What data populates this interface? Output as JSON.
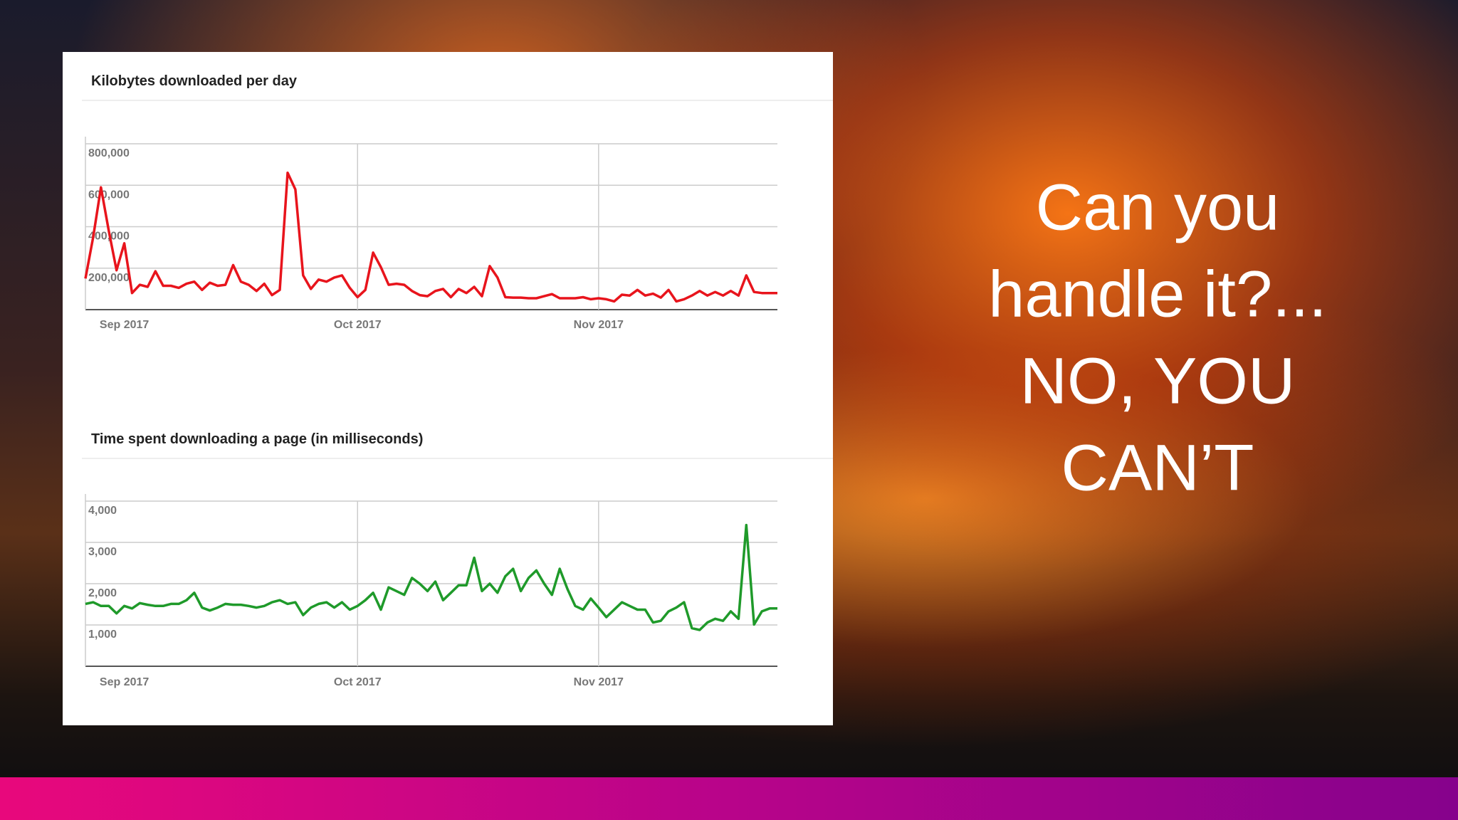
{
  "chart_data": [
    {
      "type": "line",
      "title": "Kilobytes downloaded per day",
      "color": "#e8141c",
      "categories": [
        null,
        null,
        null,
        null,
        null,
        "Sep 2017",
        null,
        null,
        null,
        null,
        null,
        null,
        null,
        null,
        null,
        null,
        null,
        null,
        null,
        null,
        null,
        null,
        null,
        null,
        null,
        null,
        null,
        null,
        null,
        null,
        null,
        null,
        null,
        null,
        null,
        "Oct 2017",
        null,
        null,
        null,
        null,
        null,
        null,
        null,
        null,
        null,
        null,
        null,
        null,
        null,
        null,
        null,
        null,
        null,
        null,
        null,
        null,
        null,
        null,
        null,
        null,
        null,
        null,
        null,
        null,
        null,
        null,
        "Nov 2017",
        null,
        null,
        null,
        null,
        null,
        null,
        null,
        null,
        null,
        null,
        null,
        null,
        null,
        null,
        null,
        null,
        null,
        null,
        null,
        null,
        null,
        null,
        null
      ],
      "values": [
        150000,
        350000,
        590000,
        380000,
        190000,
        320000,
        80000,
        120000,
        110000,
        185000,
        115000,
        115000,
        105000,
        125000,
        135000,
        95000,
        130000,
        115000,
        120000,
        215000,
        135000,
        120000,
        90000,
        125000,
        70000,
        95000,
        660000,
        580000,
        165000,
        100000,
        145000,
        135000,
        155000,
        165000,
        105000,
        60000,
        95000,
        275000,
        205000,
        120000,
        125000,
        120000,
        90000,
        70000,
        65000,
        90000,
        100000,
        60000,
        100000,
        80000,
        110000,
        65000,
        210000,
        155000,
        60000,
        58000,
        58000,
        55000,
        55000,
        65000,
        75000,
        55000,
        55000,
        55000,
        60000,
        50000,
        55000,
        50000,
        40000,
        72000,
        68000,
        95000,
        68000,
        77000,
        58000,
        95000,
        40000,
        50000,
        68000,
        90000,
        68000,
        85000,
        68000,
        90000,
        68000,
        165000,
        85000,
        80000,
        80000,
        80000
      ],
      "ylim": [
        0,
        800000
      ],
      "yticks": [
        {
          "value": 200000,
          "label": "200,000"
        },
        {
          "value": 400000,
          "label": "400,000"
        },
        {
          "value": 600000,
          "label": "600,000"
        },
        {
          "value": 800000,
          "label": "800,000"
        }
      ],
      "grid": true
    },
    {
      "type": "line",
      "title": "Time spent downloading a page (in milliseconds)",
      "color": "#1f9a2a",
      "categories": [
        null,
        null,
        null,
        null,
        null,
        "Sep 2017",
        null,
        null,
        null,
        null,
        null,
        null,
        null,
        null,
        null,
        null,
        null,
        null,
        null,
        null,
        null,
        null,
        null,
        null,
        null,
        null,
        null,
        null,
        null,
        null,
        null,
        null,
        null,
        null,
        null,
        "Oct 2017",
        null,
        null,
        null,
        null,
        null,
        null,
        null,
        null,
        null,
        null,
        null,
        null,
        null,
        null,
        null,
        null,
        null,
        null,
        null,
        null,
        null,
        null,
        null,
        null,
        null,
        null,
        null,
        null,
        null,
        null,
        "Nov 2017",
        null,
        null,
        null,
        null,
        null,
        null,
        null,
        null,
        null,
        null,
        null,
        null,
        null,
        null,
        null,
        null,
        null,
        null,
        null,
        null,
        null,
        null,
        null
      ],
      "values": [
        1510,
        1550,
        1460,
        1460,
        1280,
        1460,
        1400,
        1530,
        1490,
        1460,
        1460,
        1510,
        1510,
        1600,
        1780,
        1420,
        1350,
        1420,
        1510,
        1490,
        1490,
        1460,
        1420,
        1460,
        1550,
        1600,
        1510,
        1550,
        1240,
        1420,
        1510,
        1550,
        1420,
        1550,
        1370,
        1460,
        1600,
        1780,
        1370,
        1910,
        1820,
        1730,
        2140,
        2000,
        1820,
        2050,
        1600,
        1780,
        1960,
        1960,
        2630,
        1820,
        2000,
        1780,
        2180,
        2360,
        1820,
        2140,
        2320,
        2000,
        1730,
        2360,
        1870,
        1460,
        1370,
        1640,
        1420,
        1190,
        1370,
        1550,
        1460,
        1370,
        1370,
        1060,
        1100,
        1330,
        1420,
        1550,
        920,
        880,
        1060,
        1150,
        1100,
        1330,
        1150,
        3420,
        1010,
        1330,
        1400,
        1400
      ],
      "ylim": [
        0,
        4000
      ],
      "yticks": [
        {
          "value": 1000,
          "label": "1,000"
        },
        {
          "value": 2000,
          "label": "2,000"
        },
        {
          "value": 3000,
          "label": "3,000"
        },
        {
          "value": 4000,
          "label": "4,000"
        }
      ],
      "grid": true
    }
  ],
  "slide": {
    "lines": [
      "Can you",
      "handle it?...",
      "NO, YOU",
      "CAN’T"
    ]
  }
}
